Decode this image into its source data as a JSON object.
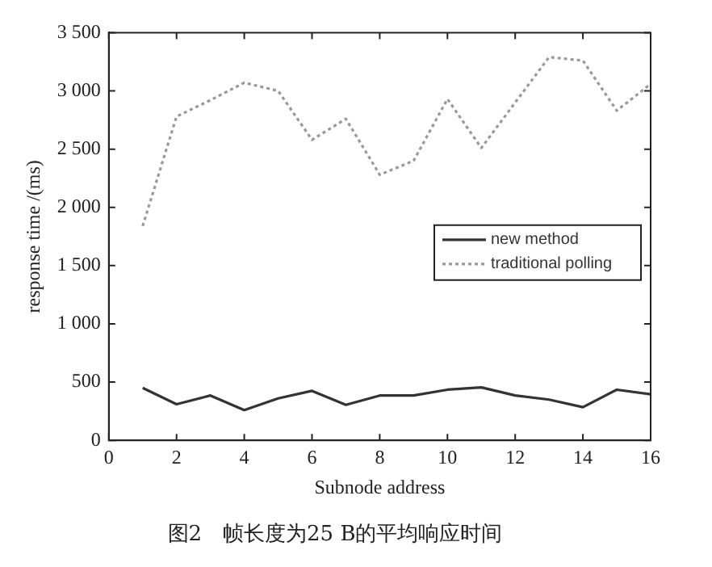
{
  "chart_data": {
    "type": "line",
    "title": "图2　帧长度为25 B的平均响应时间",
    "xlabel": "Subnode address",
    "ylabel": "response time /(ms)",
    "x": [
      1,
      2,
      3,
      4,
      5,
      6,
      7,
      8,
      9,
      10,
      11,
      12,
      13,
      14,
      15,
      16
    ],
    "xlim": [
      0,
      16
    ],
    "xticks": [
      0,
      2,
      4,
      6,
      8,
      10,
      12,
      14,
      16
    ],
    "ylim": [
      0,
      3500
    ],
    "yticks": [
      0,
      500,
      {
        "value": 1000,
        "label": "1 000"
      },
      {
        "value": 1500,
        "label": "1 500"
      },
      {
        "value": 2000,
        "label": "2 000"
      },
      {
        "value": 2500,
        "label": "2 500"
      },
      {
        "value": 3000,
        "label": "3 000"
      },
      {
        "value": 3500,
        "label": "3 500"
      }
    ],
    "grid": false,
    "legend": "right",
    "marker": "none",
    "series": [
      {
        "name": "new method",
        "color": "#333333",
        "line_style": "solid",
        "values": [
          450,
          310,
          385,
          260,
          360,
          425,
          305,
          385,
          385,
          435,
          455,
          385,
          350,
          285,
          435,
          395
        ]
      },
      {
        "name": "traditional polling",
        "color": "#999999",
        "line_style": "dotted",
        "values": [
          1840,
          2780,
          2920,
          3070,
          3000,
          2580,
          2760,
          2280,
          2400,
          2930,
          2510,
          2900,
          3290,
          3260,
          2830,
          3060
        ]
      }
    ]
  }
}
